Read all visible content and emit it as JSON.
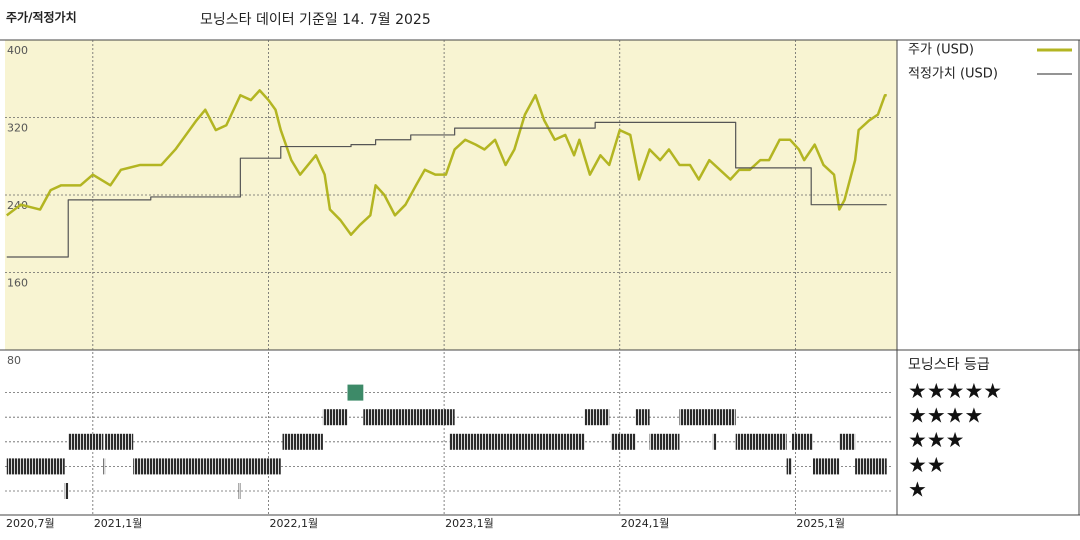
{
  "chart_data": {
    "type": "line",
    "title": "주가/적정가치",
    "subtitle": "모닝스타 데이터 기준일 14. 7월 2025",
    "xlim": [
      2020.5,
      2025.55
    ],
    "xticks": [
      {
        "value": 2020.5,
        "label": "2020,7월"
      },
      {
        "value": 2021.0,
        "label": "2021,1월"
      },
      {
        "value": 2022.0,
        "label": "2022,1월"
      },
      {
        "value": 2023.0,
        "label": "2023,1월"
      },
      {
        "value": 2024.0,
        "label": "2024,1월"
      },
      {
        "value": 2025.0,
        "label": "2025,1월"
      }
    ],
    "ylim": [
      80,
      400
    ],
    "yticks": [
      80,
      160,
      240,
      320,
      400
    ],
    "grid": true,
    "series": [
      {
        "name": "주가 (USD)",
        "color": "#b3b522",
        "x": [
          2020.51,
          2020.59,
          2020.7,
          2020.76,
          2020.82,
          2020.93,
          2021.0,
          2021.1,
          2021.16,
          2021.27,
          2021.39,
          2021.47,
          2021.53,
          2021.59,
          2021.64,
          2021.7,
          2021.76,
          2021.84,
          2021.9,
          2021.95,
          2022.0,
          2022.04,
          2022.07,
          2022.13,
          2022.18,
          2022.27,
          2022.32,
          2022.35,
          2022.41,
          2022.47,
          2022.52,
          2022.58,
          2022.61,
          2022.66,
          2022.72,
          2022.78,
          2022.84,
          2022.89,
          2022.95,
          2023.01,
          2023.06,
          2023.12,
          2023.18,
          2023.23,
          2023.29,
          2023.35,
          2023.4,
          2023.46,
          2023.52,
          2023.57,
          2023.63,
          2023.69,
          2023.74,
          2023.77,
          2023.83,
          2023.89,
          2023.94,
          2024.0,
          2024.06,
          2024.11,
          2024.17,
          2024.23,
          2024.28,
          2024.34,
          2024.4,
          2024.45,
          2024.51,
          2024.57,
          2024.63,
          2024.68,
          2024.74,
          2024.8,
          2024.85,
          2024.91,
          2024.97,
          2025.02,
          2025.05,
          2025.11,
          2025.16,
          2025.22,
          2025.25,
          2025.28,
          2025.34,
          2025.36,
          2025.42,
          2025.47,
          2025.51,
          2025.52
        ],
        "values": [
          219,
          230,
          225,
          245,
          250,
          250,
          261,
          250,
          266,
          271,
          271,
          287,
          302,
          317,
          328,
          307,
          312,
          343,
          338,
          348,
          338,
          328,
          307,
          276,
          261,
          281,
          261,
          225,
          214,
          199,
          209,
          219,
          250,
          240,
          219,
          230,
          250,
          266,
          261,
          261,
          287,
          297,
          292,
          287,
          297,
          271,
          287,
          323,
          343,
          317,
          297,
          302,
          281,
          297,
          261,
          281,
          271,
          307,
          302,
          256,
          287,
          276,
          287,
          271,
          271,
          256,
          276,
          266,
          256,
          266,
          266,
          276,
          276,
          297,
          297,
          287,
          276,
          292,
          271,
          261,
          225,
          235,
          276,
          307,
          317,
          323,
          343,
          343
        ]
      },
      {
        "name": "적정가치 (USD)",
        "color": "#555555",
        "step": true,
        "x": [
          2020.51,
          2020.86,
          2021.33,
          2021.84,
          2022.07,
          2022.47,
          2022.61,
          2022.81,
          2023.06,
          2023.86,
          2024.66,
          2025.09,
          2025.52
        ],
        "values": [
          176,
          235,
          238,
          278,
          290,
          292,
          297,
          302,
          309,
          315,
          268,
          230,
          230
        ]
      }
    ],
    "rating_title": "모닝스타 등급",
    "rating_legend": [
      "★★★★★",
      "★★★★",
      "★★★",
      "★★",
      "★"
    ],
    "rating_colors": {
      "5": "#3d8a68",
      "other": "#2b2b2b"
    },
    "ratings": [
      {
        "from": 2020.51,
        "to": 2020.84,
        "stars": 2
      },
      {
        "from": 2020.84,
        "to": 2020.86,
        "stars": 1
      },
      {
        "from": 2020.86,
        "to": 2021.06,
        "stars": 3
      },
      {
        "from": 2021.06,
        "to": 2021.07,
        "stars": 2
      },
      {
        "from": 2021.07,
        "to": 2021.23,
        "stars": 3
      },
      {
        "from": 2021.23,
        "to": 2022.07,
        "stars": 2
      },
      {
        "from": 2021.83,
        "to": 2021.84,
        "stars": 1
      },
      {
        "from": 2022.08,
        "to": 2022.31,
        "stars": 3
      },
      {
        "from": 2022.31,
        "to": 2022.45,
        "stars": 4
      },
      {
        "from": 2022.45,
        "to": 2022.54,
        "stars": 5
      },
      {
        "from": 2022.54,
        "to": 2023.06,
        "stars": 4
      },
      {
        "from": 2023.03,
        "to": 2023.8,
        "stars": 3
      },
      {
        "from": 2023.8,
        "to": 2023.94,
        "stars": 4
      },
      {
        "from": 2023.95,
        "to": 2024.09,
        "stars": 3
      },
      {
        "from": 2024.09,
        "to": 2024.17,
        "stars": 4
      },
      {
        "from": 2024.17,
        "to": 2024.34,
        "stars": 3
      },
      {
        "from": 2024.34,
        "to": 2024.66,
        "stars": 4
      },
      {
        "from": 2024.53,
        "to": 2024.55,
        "stars": 3
      },
      {
        "from": 2024.66,
        "to": 2024.95,
        "stars": 3
      },
      {
        "from": 2024.95,
        "to": 2024.98,
        "stars": 2
      },
      {
        "from": 2024.98,
        "to": 2025.1,
        "stars": 3
      },
      {
        "from": 2025.1,
        "to": 2025.25,
        "stars": 2
      },
      {
        "from": 2025.25,
        "to": 2025.34,
        "stars": 3
      },
      {
        "from": 2025.34,
        "to": 2025.52,
        "stars": 2
      }
    ]
  }
}
